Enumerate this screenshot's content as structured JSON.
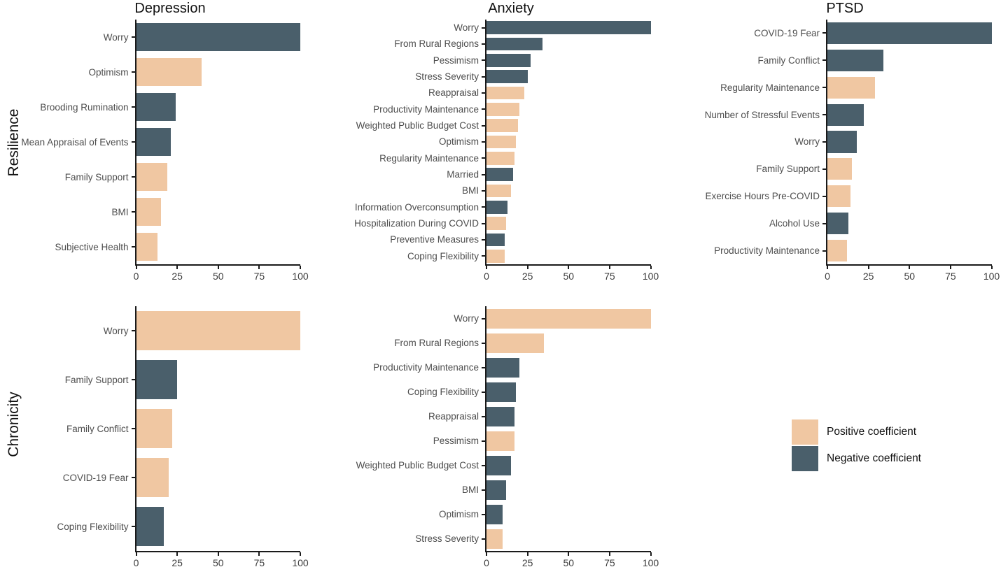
{
  "figure": {
    "col_titles": [
      "Depression",
      "Anxiety",
      "PTSD"
    ],
    "row_labels": [
      "Resilience",
      "Chronicity"
    ]
  },
  "colors": {
    "positive": "#F0C7A2",
    "negative": "#4A5F6B",
    "axis": "#1a1a1a"
  },
  "legend": {
    "items": [
      {
        "label": "Positive coefficient",
        "color_key": "positive"
      },
      {
        "label": "Negative coefficient",
        "color_key": "negative"
      }
    ]
  },
  "axis": {
    "xlim": [
      0,
      100
    ],
    "ticks": [
      0,
      25,
      50,
      75,
      100
    ],
    "tick_labels": [
      "0",
      "25",
      "50",
      "75",
      "100"
    ]
  },
  "chart_data": [
    {
      "id": "depression-resilience",
      "type": "bar",
      "orientation": "horizontal",
      "facet_col": "Depression",
      "facet_row": "Resilience",
      "categories": [
        "Worry",
        "Optimism",
        "Brooding Rumination",
        "Mean Appraisal of Events",
        "Family Support",
        "BMI",
        "Subjective Health"
      ],
      "values": [
        100,
        40,
        24,
        21,
        19,
        15,
        13
      ],
      "signs": [
        "negative",
        "positive",
        "negative",
        "negative",
        "positive",
        "positive",
        "positive"
      ]
    },
    {
      "id": "anxiety-resilience",
      "type": "bar",
      "orientation": "horizontal",
      "facet_col": "Anxiety",
      "facet_row": "Resilience",
      "categories": [
        "Worry",
        "From Rural Regions",
        "Pessimism",
        "Stress Severity",
        "Reappraisal",
        "Productivity Maintenance",
        "Weighted Public Budget Cost",
        "Optimism",
        "Regularity Maintenance",
        "Married",
        "BMI",
        "Information Overconsumption",
        "Hospitalization During COVID",
        "Preventive Measures",
        "Coping Flexibility"
      ],
      "values": [
        100,
        34,
        27,
        25,
        23,
        20,
        19,
        18,
        17,
        16,
        15,
        13,
        12,
        11,
        11
      ],
      "signs": [
        "negative",
        "negative",
        "negative",
        "negative",
        "positive",
        "positive",
        "positive",
        "positive",
        "positive",
        "negative",
        "positive",
        "negative",
        "positive",
        "negative",
        "positive"
      ]
    },
    {
      "id": "ptsd-resilience",
      "type": "bar",
      "orientation": "horizontal",
      "facet_col": "PTSD",
      "facet_row": "Resilience",
      "categories": [
        "COVID-19 Fear",
        "Family Conflict",
        "Regularity Maintenance",
        "Number of Stressful Events",
        "Worry",
        "Family Support",
        "Exercise Hours Pre-COVID",
        "Alcohol Use",
        "Productivity Maintenance"
      ],
      "values": [
        100,
        34,
        29,
        22,
        18,
        15,
        14,
        13,
        12
      ],
      "signs": [
        "negative",
        "negative",
        "positive",
        "negative",
        "negative",
        "positive",
        "positive",
        "negative",
        "positive"
      ]
    },
    {
      "id": "depression-chronicity",
      "type": "bar",
      "orientation": "horizontal",
      "facet_col": "Depression",
      "facet_row": "Chronicity",
      "categories": [
        "Worry",
        "Family Support",
        "Family Conflict",
        "COVID-19 Fear",
        "Coping Flexibility"
      ],
      "values": [
        100,
        25,
        22,
        20,
        17
      ],
      "signs": [
        "positive",
        "negative",
        "positive",
        "positive",
        "negative"
      ]
    },
    {
      "id": "anxiety-chronicity",
      "type": "bar",
      "orientation": "horizontal",
      "facet_col": "Anxiety",
      "facet_row": "Chronicity",
      "categories": [
        "Worry",
        "From Rural Regions",
        "Productivity Maintenance",
        "Coping Flexibility",
        "Reappraisal",
        "Pessimism",
        "Weighted Public Budget Cost",
        "BMI",
        "Optimism",
        "Stress Severity"
      ],
      "values": [
        100,
        35,
        20,
        18,
        17,
        17,
        15,
        12,
        10,
        10
      ],
      "signs": [
        "positive",
        "positive",
        "negative",
        "negative",
        "negative",
        "positive",
        "negative",
        "negative",
        "negative",
        "positive"
      ]
    }
  ]
}
